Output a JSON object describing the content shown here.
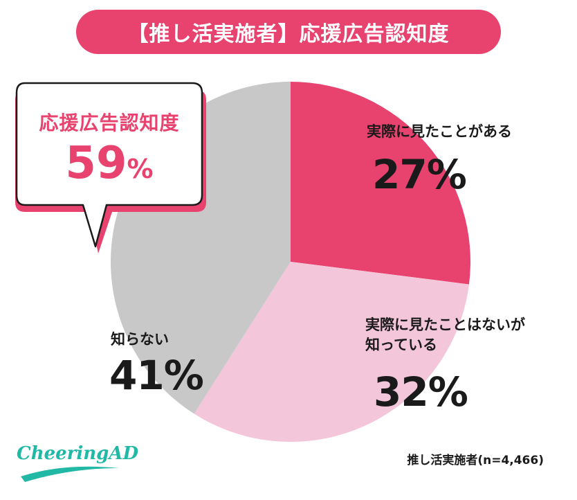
{
  "title": "【推し活実施者】応援広告認知度",
  "callout": {
    "title": "応援広告認知度",
    "value": "59",
    "unit": "%"
  },
  "sample_note": "推し活実施者(n=4,466)",
  "logo_text": "CheeringAD",
  "colors": {
    "accent": "#e8426f",
    "light_pink": "#f4c6da",
    "gray": "#c9c8c9",
    "logo": "#22b8a6"
  },
  "chart_data": {
    "type": "pie",
    "title": "【推し活実施者】応援広告認知度",
    "slices": [
      {
        "label": "実際に見たことがある",
        "value": 27,
        "value_label": "27%",
        "color": "#e8426f"
      },
      {
        "label": "実際に見たことはないが知っている",
        "label_lines": [
          "実際に見たことはないが",
          "知っている"
        ],
        "value": 32,
        "value_label": "32%",
        "color": "#f4c6da"
      },
      {
        "label": "知らない",
        "value": 41,
        "value_label": "41%",
        "color": "#c9c8c9"
      }
    ],
    "start": "12 o'clock",
    "direction": "clockwise"
  }
}
